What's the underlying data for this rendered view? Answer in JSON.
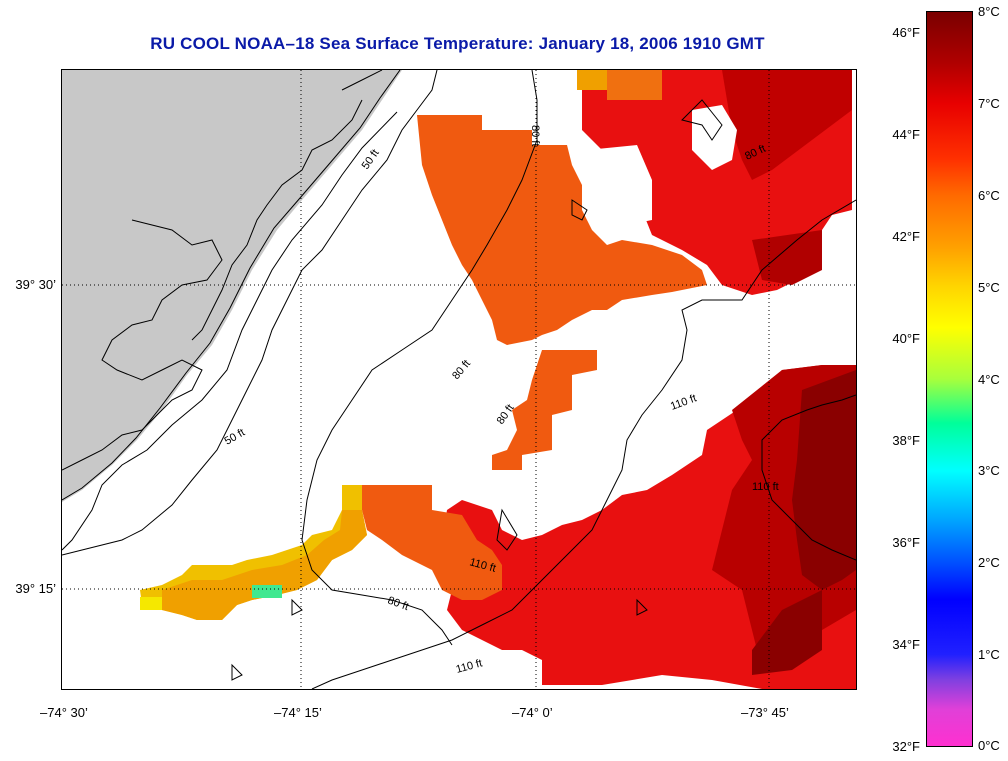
{
  "title": "RU COOL  NOAA–18  Sea Surface Temperature:  January 18, 2006 1910 GMT",
  "lat_labels": [
    "39° 30’",
    "39° 15’"
  ],
  "lon_labels": [
    "–74° 30’",
    "–74° 15’",
    "–74° 0’",
    "–73° 45’"
  ],
  "contour_labels": [
    "50 ft",
    "50 ft",
    "80 ft",
    "80 ft",
    "80 ft",
    "80 ft",
    "80 ft",
    "110 ft",
    "110 ft",
    "110 ft",
    "110 ft"
  ],
  "colorbar": {
    "fahrenheit": [
      "46°F",
      "44°F",
      "42°F",
      "40°F",
      "38°F",
      "36°F",
      "34°F",
      "32°F"
    ],
    "celsius": [
      "8°C",
      "7°C",
      "6°C",
      "5°C",
      "4°C",
      "3°C",
      "2°C",
      "1°C",
      "0°C"
    ],
    "range_f": [
      32,
      46
    ],
    "range_c": [
      0,
      8
    ]
  },
  "colors": {
    "land": "#c8c8c8",
    "title": "#0a1aa8",
    "sst_warm_dark": "#8a0000",
    "sst_red": "#e81010",
    "sst_orange": "#f05a10",
    "sst_yellow": "#f0c000",
    "sst_green": "#40e890"
  }
}
